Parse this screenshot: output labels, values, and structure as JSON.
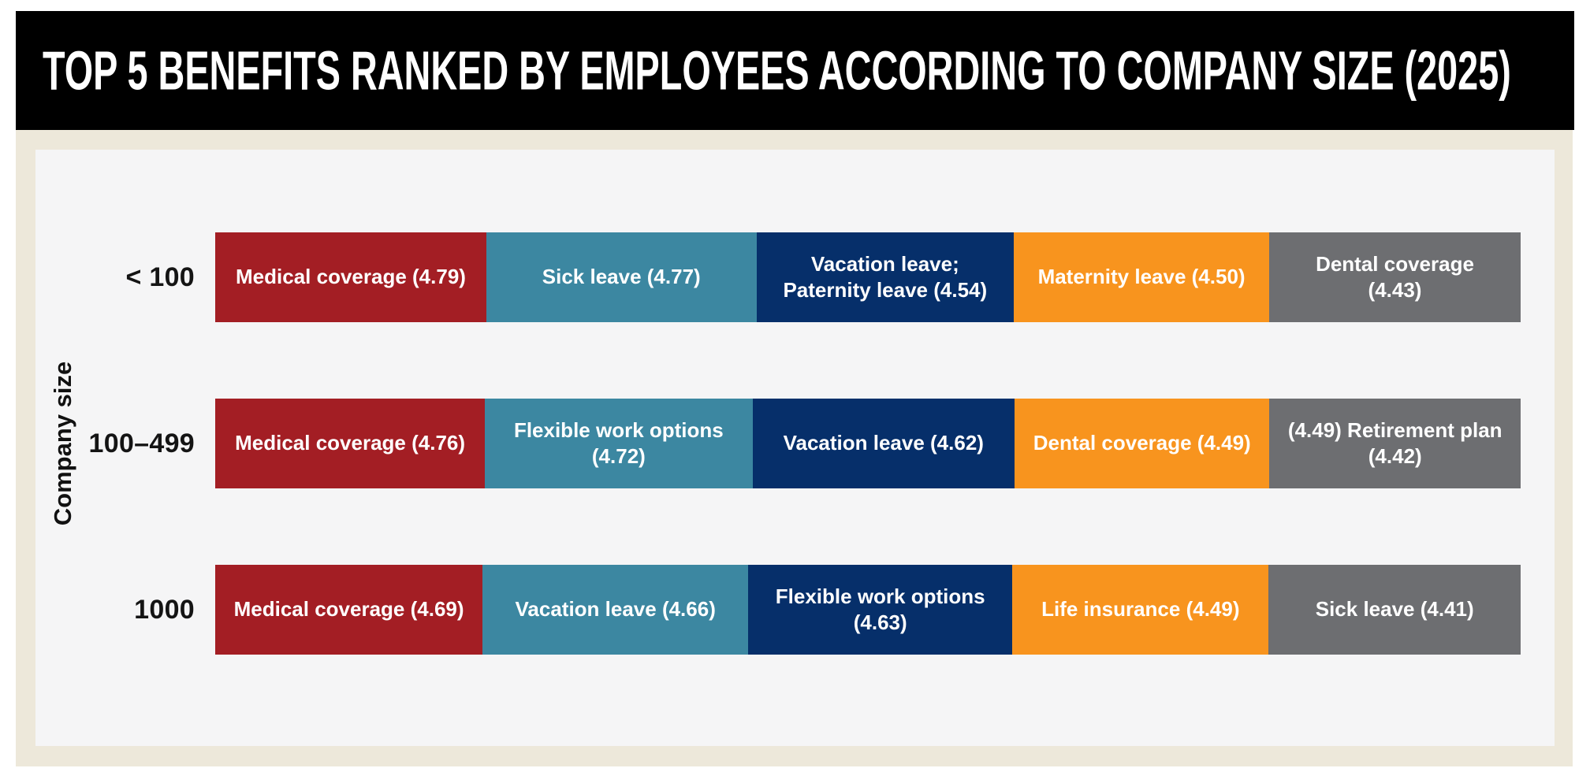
{
  "header": {
    "title": "TOP 5 BENEFITS RANKED BY EMPLOYEES ACCORDING TO COMPANY SIZE (2025)"
  },
  "colors": {
    "header_bg": "#000000",
    "header_text": "#FFFFFF",
    "canvas_bg": "#FFFFFF",
    "panel_bg": "#EDE8DA",
    "plot_bg": "#F5F5F6",
    "row_label_text": "#141414",
    "segment_text": "#FFFFFF",
    "rank_colors": [
      "#A31E24",
      "#3C87A1",
      "#062F6A",
      "#F8941E",
      "#6D6E71"
    ]
  },
  "chart_data": {
    "type": "bar",
    "orientation": "horizontal-stacked",
    "title": "TOP 5 BENEFITS RANKED BY EMPLOYEES ACCORDING TO COMPANY SIZE (2025)",
    "xlabel": "",
    "ylabel": "Company size",
    "legend": false,
    "grid": false,
    "categories": [
      "< 100",
      "100–499",
      "1000"
    ],
    "segment_width_rule": "segment width proportional to rating within each row",
    "rows": [
      {
        "company_size": "< 100",
        "benefits": [
          {
            "rank": 1,
            "label": "Medical coverage",
            "rating": 4.79,
            "display": "Medical coverage (4.79)"
          },
          {
            "rank": 2,
            "label": "Sick leave",
            "rating": 4.77,
            "display": "Sick leave (4.77)"
          },
          {
            "rank": 3,
            "label": "Vacation leave; Paternity leave",
            "rating": 4.54,
            "display": "Vacation leave;\nPaternity leave (4.54)"
          },
          {
            "rank": 4,
            "label": "Maternity leave",
            "rating": 4.5,
            "display": "Maternity leave (4.50)"
          },
          {
            "rank": 5,
            "label": "Dental coverage",
            "rating": 4.43,
            "display": "Dental coverage\n(4.43)"
          }
        ]
      },
      {
        "company_size": "100–499",
        "benefits": [
          {
            "rank": 1,
            "label": "Medical coverage",
            "rating": 4.76,
            "display": "Medical coverage (4.76)"
          },
          {
            "rank": 2,
            "label": "Flexible work options",
            "rating": 4.72,
            "display": "Flexible work options\n(4.72)"
          },
          {
            "rank": 3,
            "label": "Vacation leave",
            "rating": 4.62,
            "display": "Vacation leave (4.62)"
          },
          {
            "rank": 4,
            "label": "Dental coverage",
            "rating": 4.49,
            "display": "Dental coverage (4.49)"
          },
          {
            "rank": 5,
            "label": "Retirement plan",
            "rating": 4.42,
            "display": "(4.49) Retirement plan\n(4.42)"
          }
        ]
      },
      {
        "company_size": "1000",
        "benefits": [
          {
            "rank": 1,
            "label": "Medical coverage",
            "rating": 4.69,
            "display": "Medical coverage (4.69)"
          },
          {
            "rank": 2,
            "label": "Vacation leave",
            "rating": 4.66,
            "display": "Vacation leave (4.66)"
          },
          {
            "rank": 3,
            "label": "Flexible work options",
            "rating": 4.63,
            "display": "Flexible work options\n(4.63)"
          },
          {
            "rank": 4,
            "label": "Life insurance",
            "rating": 4.49,
            "display": "Life insurance (4.49)"
          },
          {
            "rank": 5,
            "label": "Sick leave",
            "rating": 4.41,
            "display": "Sick leave (4.41)"
          }
        ]
      }
    ]
  }
}
